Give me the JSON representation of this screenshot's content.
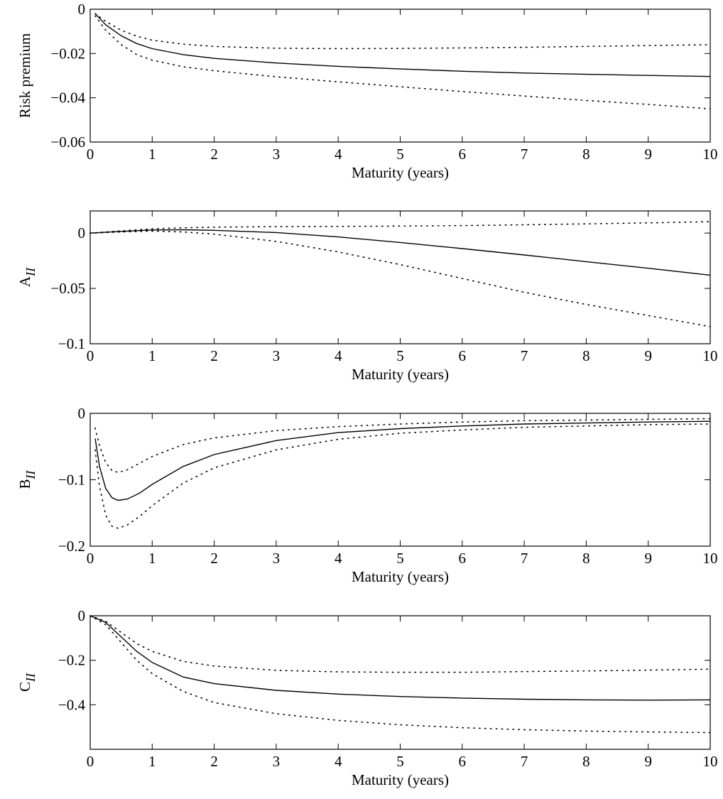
{
  "chart_data": [
    {
      "type": "line",
      "xlabel": "Maturity (years)",
      "ylabel": "Risk premium",
      "ylabel_subscript": "",
      "xlim": [
        0,
        10
      ],
      "ylim": [
        -0.06,
        0
      ],
      "xticks": [
        0,
        1,
        2,
        3,
        4,
        5,
        6,
        7,
        8,
        9,
        10
      ],
      "yticks": [
        0,
        -0.02,
        -0.04,
        -0.06
      ],
      "ytick_labels": [
        "0",
        "−0.02",
        "−0.04",
        "−0.06"
      ],
      "grid": false,
      "series": [
        {
          "style": "solid",
          "x": [
            0.08,
            0.25,
            0.5,
            0.75,
            1,
            1.5,
            2,
            3,
            4,
            5,
            6,
            7,
            8,
            9,
            10
          ],
          "y": [
            -0.002,
            -0.007,
            -0.012,
            -0.0155,
            -0.0178,
            -0.0205,
            -0.0222,
            -0.0243,
            -0.0258,
            -0.027,
            -0.028,
            -0.0288,
            -0.0294,
            -0.0299,
            -0.0304
          ]
        },
        {
          "style": "dotted",
          "x": [
            0.08,
            0.25,
            0.5,
            0.75,
            1,
            1.5,
            2,
            3,
            4,
            5,
            6,
            7,
            8,
            9,
            10
          ],
          "y": [
            -0.002,
            -0.0055,
            -0.0095,
            -0.0122,
            -0.014,
            -0.0158,
            -0.0168,
            -0.0176,
            -0.0178,
            -0.0177,
            -0.0175,
            -0.0172,
            -0.0168,
            -0.0164,
            -0.016
          ]
        },
        {
          "style": "dotted",
          "x": [
            0.08,
            0.25,
            0.5,
            0.75,
            1,
            1.5,
            2,
            3,
            4,
            5,
            6,
            7,
            8,
            9,
            10
          ],
          "y": [
            -0.003,
            -0.0095,
            -0.016,
            -0.0205,
            -0.023,
            -0.026,
            -0.0278,
            -0.0305,
            -0.0328,
            -0.035,
            -0.0372,
            -0.0392,
            -0.0412,
            -0.043,
            -0.045
          ]
        }
      ]
    },
    {
      "type": "line",
      "xlabel": "Maturity (years)",
      "ylabel": "A",
      "ylabel_subscript": "II",
      "xlim": [
        0,
        10
      ],
      "ylim": [
        -0.1,
        0.02
      ],
      "xticks": [
        0,
        1,
        2,
        3,
        4,
        5,
        6,
        7,
        8,
        9,
        10
      ],
      "yticks": [
        0,
        -0.05,
        -0.1
      ],
      "ytick_labels": [
        "0",
        "−0.05",
        "−0.1"
      ],
      "grid": false,
      "series": [
        {
          "style": "solid",
          "x": [
            0,
            0.5,
            1,
            1.5,
            2,
            3,
            4,
            5,
            6,
            7,
            8,
            9,
            10
          ],
          "y": [
            0,
            0.0015,
            0.0028,
            0.003,
            0.0025,
            0.0005,
            -0.0035,
            -0.0085,
            -0.014,
            -0.0198,
            -0.0258,
            -0.0318,
            -0.038
          ]
        },
        {
          "style": "dotted",
          "x": [
            0,
            0.5,
            1,
            1.5,
            2,
            3,
            4,
            5,
            6,
            7,
            8,
            9,
            10
          ],
          "y": [
            0,
            0.002,
            0.0038,
            0.0048,
            0.0053,
            0.0058,
            0.006,
            0.0063,
            0.0068,
            0.0075,
            0.0083,
            0.0092,
            0.0103
          ]
        },
        {
          "style": "dotted",
          "x": [
            0,
            0.5,
            1,
            1.5,
            2,
            3,
            4,
            5,
            6,
            7,
            8,
            9,
            10
          ],
          "y": [
            0,
            0.001,
            0.0018,
            0.001,
            -0.001,
            -0.0075,
            -0.017,
            -0.0285,
            -0.041,
            -0.0535,
            -0.0645,
            -0.0745,
            -0.0845
          ]
        }
      ]
    },
    {
      "type": "line",
      "xlabel": "Maturity (years)",
      "ylabel": "B",
      "ylabel_subscript": "II",
      "xlim": [
        0,
        10
      ],
      "ylim": [
        -0.2,
        0
      ],
      "xticks": [
        0,
        1,
        2,
        3,
        4,
        5,
        6,
        7,
        8,
        9,
        10
      ],
      "yticks": [
        0,
        -0.1,
        -0.2
      ],
      "ytick_labels": [
        "0",
        "−0.1",
        "−0.2"
      ],
      "grid": false,
      "series": [
        {
          "style": "solid",
          "x": [
            0.08,
            0.15,
            0.25,
            0.35,
            0.45,
            0.6,
            0.8,
            1,
            1.5,
            2,
            3,
            4,
            5,
            6,
            7,
            8,
            9,
            10
          ],
          "y": [
            -0.038,
            -0.08,
            -0.113,
            -0.127,
            -0.131,
            -0.129,
            -0.12,
            -0.107,
            -0.08,
            -0.062,
            -0.041,
            -0.029,
            -0.023,
            -0.019,
            -0.016,
            -0.0145,
            -0.013,
            -0.012
          ]
        },
        {
          "style": "dotted",
          "x": [
            0.08,
            0.15,
            0.25,
            0.35,
            0.45,
            0.6,
            0.8,
            1,
            1.5,
            2,
            3,
            4,
            5,
            6,
            7,
            8,
            9,
            10
          ],
          "y": [
            -0.022,
            -0.049,
            -0.074,
            -0.086,
            -0.089,
            -0.085,
            -0.075,
            -0.065,
            -0.047,
            -0.037,
            -0.026,
            -0.02,
            -0.016,
            -0.013,
            -0.011,
            -0.01,
            -0.009,
            -0.008
          ]
        },
        {
          "style": "dotted",
          "x": [
            0.08,
            0.15,
            0.25,
            0.35,
            0.45,
            0.6,
            0.8,
            1,
            1.5,
            2,
            3,
            4,
            5,
            6,
            7,
            8,
            9,
            10
          ],
          "y": [
            -0.055,
            -0.11,
            -0.153,
            -0.17,
            -0.173,
            -0.168,
            -0.155,
            -0.139,
            -0.105,
            -0.082,
            -0.055,
            -0.039,
            -0.03,
            -0.025,
            -0.021,
            -0.019,
            -0.017,
            -0.016
          ]
        }
      ]
    },
    {
      "type": "line",
      "xlabel": "Maturity (years)",
      "ylabel": "C",
      "ylabel_subscript": "II",
      "xlim": [
        0,
        10
      ],
      "ylim": [
        -0.6,
        0
      ],
      "xticks": [
        0,
        1,
        2,
        3,
        4,
        5,
        6,
        7,
        8,
        9,
        10
      ],
      "yticks": [
        0,
        -0.2,
        -0.4
      ],
      "ytick_labels": [
        "0",
        "−0.2",
        "−0.4"
      ],
      "grid": false,
      "series": [
        {
          "style": "solid",
          "x": [
            0,
            0.25,
            0.5,
            0.75,
            1,
            1.5,
            2,
            3,
            4,
            5,
            6,
            7,
            8,
            9,
            10
          ],
          "y": [
            0,
            -0.03,
            -0.095,
            -0.16,
            -0.21,
            -0.275,
            -0.305,
            -0.335,
            -0.352,
            -0.363,
            -0.37,
            -0.375,
            -0.378,
            -0.379,
            -0.378
          ]
        },
        {
          "style": "dotted",
          "x": [
            0,
            0.25,
            0.5,
            0.75,
            1,
            1.5,
            2,
            3,
            4,
            5,
            6,
            7,
            8,
            9,
            10
          ],
          "y": [
            0,
            -0.025,
            -0.075,
            -0.125,
            -0.16,
            -0.205,
            -0.226,
            -0.245,
            -0.252,
            -0.254,
            -0.254,
            -0.251,
            -0.248,
            -0.244,
            -0.24
          ]
        },
        {
          "style": "dotted",
          "x": [
            0,
            0.25,
            0.5,
            0.75,
            1,
            1.5,
            2,
            3,
            4,
            5,
            6,
            7,
            8,
            9,
            10
          ],
          "y": [
            0,
            -0.04,
            -0.12,
            -0.2,
            -0.26,
            -0.34,
            -0.39,
            -0.44,
            -0.47,
            -0.49,
            -0.503,
            -0.512,
            -0.518,
            -0.522,
            -0.525
          ]
        }
      ]
    }
  ]
}
